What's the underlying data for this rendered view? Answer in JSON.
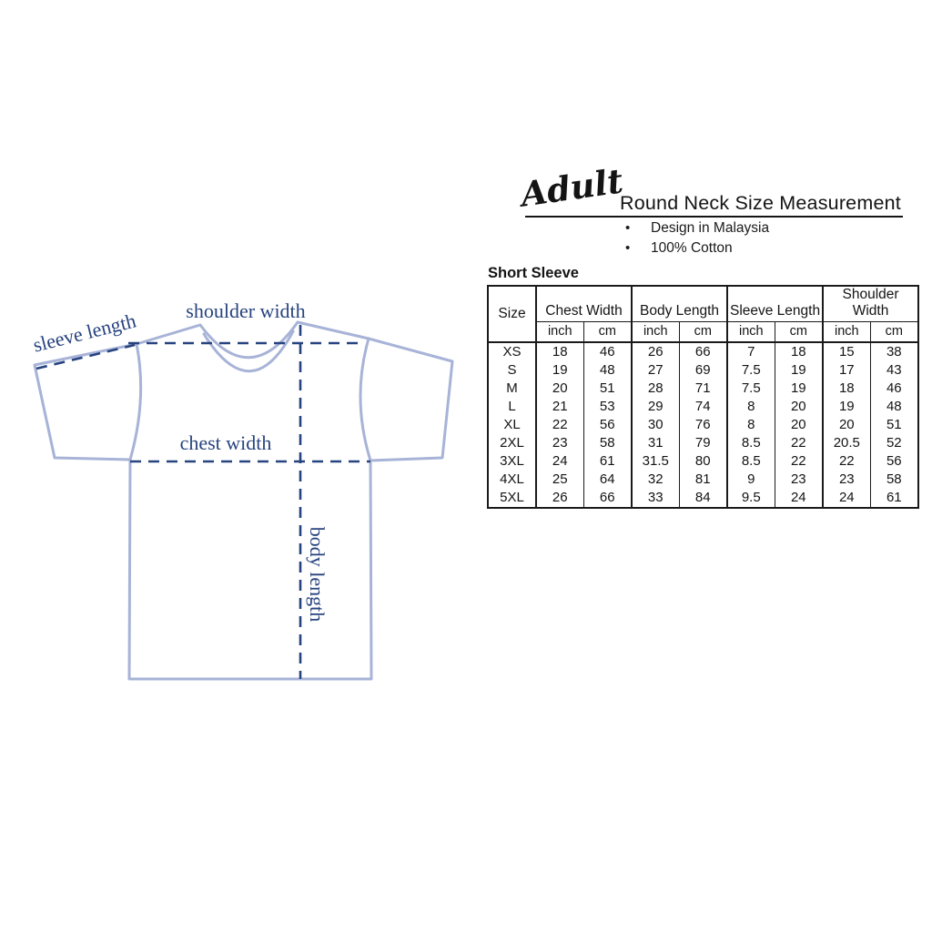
{
  "header": {
    "brand": "Adult",
    "title": "Round Neck Size Measurement",
    "bullets": [
      "Design in Malaysia",
      "100% Cotton"
    ]
  },
  "section": {
    "label": "Short Sleeve"
  },
  "diagram": {
    "labels": {
      "sleeve_length": "sleeve length",
      "shoulder_width": "shoulder width",
      "chest_width": "chest width",
      "body_length": "body length"
    },
    "colors": {
      "shirt_outline": "#a7b3d7",
      "measurement": "#27437f"
    }
  },
  "size_table": {
    "size_header": "Size",
    "group_headers": [
      "Chest Width",
      "Body Length",
      "Sleeve Length",
      "Shoulder Width"
    ],
    "unit_headers": [
      "inch",
      "cm"
    ],
    "rows": [
      {
        "size": "XS",
        "values": [
          "18",
          "46",
          "26",
          "66",
          "7",
          "18",
          "15",
          "38"
        ]
      },
      {
        "size": "S",
        "values": [
          "19",
          "48",
          "27",
          "69",
          "7.5",
          "19",
          "17",
          "43"
        ]
      },
      {
        "size": "M",
        "values": [
          "20",
          "51",
          "28",
          "71",
          "7.5",
          "19",
          "18",
          "46"
        ]
      },
      {
        "size": "L",
        "values": [
          "21",
          "53",
          "29",
          "74",
          "8",
          "20",
          "19",
          "48"
        ]
      },
      {
        "size": "XL",
        "values": [
          "22",
          "56",
          "30",
          "76",
          "8",
          "20",
          "20",
          "51"
        ]
      },
      {
        "size": "2XL",
        "values": [
          "23",
          "58",
          "31",
          "79",
          "8.5",
          "22",
          "20.5",
          "52"
        ]
      },
      {
        "size": "3XL",
        "values": [
          "24",
          "61",
          "31.5",
          "80",
          "8.5",
          "22",
          "22",
          "56"
        ]
      },
      {
        "size": "4XL",
        "values": [
          "25",
          "64",
          "32",
          "81",
          "9",
          "23",
          "23",
          "58"
        ]
      },
      {
        "size": "5XL",
        "values": [
          "26",
          "66",
          "33",
          "84",
          "9.5",
          "24",
          "24",
          "61"
        ]
      }
    ]
  }
}
